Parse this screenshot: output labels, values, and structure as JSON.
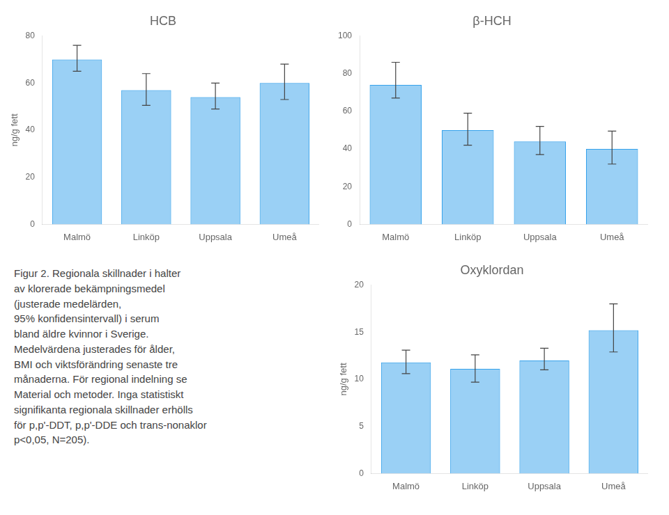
{
  "chart_data": [
    {
      "type": "bar",
      "title": "HCB",
      "categories": [
        "Malmö",
        "Linköp",
        "Uppsala",
        "Umeå"
      ],
      "values": [
        70.0,
        57.0,
        54.0,
        60.0
      ],
      "yerr_upper": [
        6.0,
        7.0,
        6.0,
        8.0
      ],
      "yerr_lower": [
        5.0,
        6.5,
        5.0,
        7.0
      ],
      "ylim": [
        0,
        80
      ],
      "yticks": [
        0,
        20,
        40,
        60,
        80
      ],
      "ylabel": "ng/g fett",
      "grid": false
    },
    {
      "type": "bar",
      "title": "β-HCH",
      "categories": [
        "Malmö",
        "Linköp",
        "Uppsala",
        "Umeå"
      ],
      "values": [
        74.0,
        50.0,
        44.0,
        40.0
      ],
      "yerr_upper": [
        12.0,
        9.0,
        8.0,
        9.5
      ],
      "yerr_lower": [
        7.0,
        8.0,
        7.0,
        8.0
      ],
      "ylim": [
        0,
        100
      ],
      "yticks": [
        0,
        20,
        40,
        60,
        80,
        100
      ],
      "grid": false
    },
    {
      "type": "bar",
      "title": "Oxyklordan",
      "categories": [
        "Malmö",
        "Linköp",
        "Uppsala",
        "Umeå"
      ],
      "values": [
        11.8,
        11.1,
        12.0,
        15.2
      ],
      "yerr_upper": [
        1.3,
        1.5,
        1.3,
        2.8
      ],
      "yerr_lower": [
        1.2,
        1.4,
        1.0,
        2.3
      ],
      "ylim": [
        0,
        20
      ],
      "yticks": [
        0,
        5,
        10,
        15,
        20
      ],
      "ylabel": "ng/g fett",
      "grid": false
    }
  ],
  "caption": [
    "Figur 2. Regionala skillnader i halter",
    "av klorerade bekämpningsmedel",
    "(justerade medelärden,",
    "95% konfidensintervall) i serum",
    "bland äldre kvinnor i Sverige.",
    "Medelvärdena justerades för ålder,",
    "BMI och viktsförändring senaste tre",
    "månaderna. För regional indelning se",
    "Material och metoder. Inga statistiskt",
    "signifikanta regionala skillnader erhölls",
    "för p,p'-DDT, p,p'-DDE och trans-nonaklor",
    "p<0,05, N=205)."
  ]
}
